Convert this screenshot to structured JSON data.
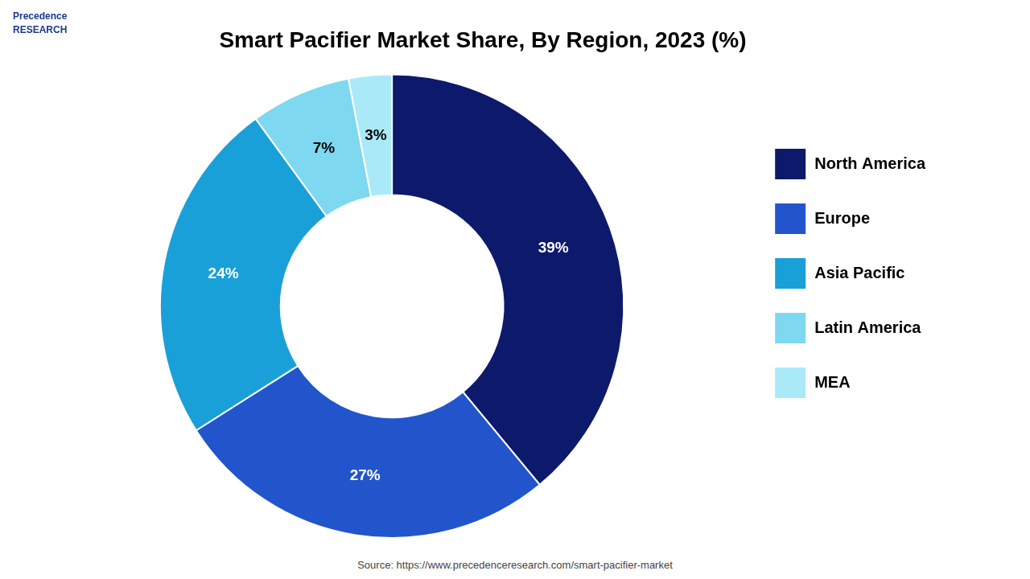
{
  "chart_data": {
    "type": "doughnut",
    "title": "Smart Pacifier Market Share, By Region, 2023 (%)",
    "categories": [
      "North America",
      "Europe",
      "Asia Pacific",
      "Latin America",
      "MEA"
    ],
    "values": [
      39,
      27,
      24,
      7,
      3
    ],
    "value_labels": [
      "39%",
      "27%",
      "24%",
      "7%",
      "3%"
    ],
    "colors": [
      "#0d1a6b",
      "#2255cc",
      "#1aa0d8",
      "#7dd8f0",
      "#aaeaf8"
    ],
    "data_labels": true,
    "legend": "right",
    "annotations": [
      "Precedence\nRESEARCH",
      "Source: https://www.precedenceresearch.com/smart-pacifier-market"
    ]
  }
}
